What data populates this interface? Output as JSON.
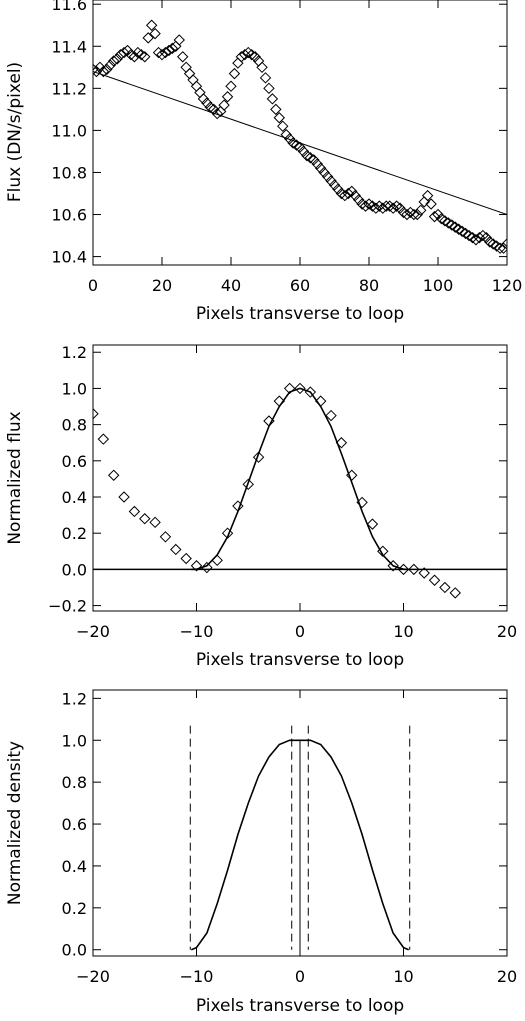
{
  "chart_data": [
    {
      "type": "scatter",
      "xlabel": "Pixels transverse to loop",
      "ylabel": "Flux (DN/s/pixel)",
      "xlim": [
        0,
        120
      ],
      "ylim": [
        10.36,
        11.62
      ],
      "xticks": [
        "0",
        "20",
        "40",
        "60",
        "80",
        "100",
        "120"
      ],
      "yticks": [
        "10.4",
        "10.6",
        "10.8",
        "11.0",
        "11.2",
        "11.4",
        "11.6"
      ],
      "grid": false,
      "series": [
        {
          "marker": "diamond",
          "x": [
            0,
            1,
            2,
            3,
            4,
            5,
            6,
            7,
            8,
            9,
            10,
            11,
            12,
            13,
            14,
            15,
            16,
            17,
            18,
            19,
            20,
            21,
            22,
            23,
            24,
            25,
            26,
            27,
            28,
            29,
            30,
            31,
            32,
            33,
            34,
            35,
            36,
            37,
            38,
            39,
            40,
            41,
            42,
            43,
            44,
            45,
            46,
            47,
            48,
            49,
            50,
            51,
            52,
            53,
            54,
            55,
            56,
            57,
            58,
            59,
            60,
            61,
            62,
            63,
            64,
            65,
            66,
            67,
            68,
            69,
            70,
            71,
            72,
            73,
            74,
            75,
            76,
            77,
            78,
            79,
            80,
            81,
            82,
            83,
            84,
            85,
            86,
            87,
            88,
            89,
            90,
            91,
            92,
            93,
            94,
            95,
            96,
            97,
            98,
            99,
            100,
            101,
            102,
            103,
            104,
            105,
            106,
            107,
            108,
            109,
            110,
            111,
            112,
            113,
            114,
            115,
            116,
            117,
            118,
            119,
            120
          ],
          "y": [
            11.29,
            11.28,
            11.3,
            11.28,
            11.29,
            11.31,
            11.33,
            11.34,
            11.36,
            11.37,
            11.38,
            11.36,
            11.35,
            11.37,
            11.36,
            11.35,
            11.44,
            11.5,
            11.46,
            11.37,
            11.36,
            11.37,
            11.38,
            11.39,
            11.4,
            11.43,
            11.35,
            11.3,
            11.27,
            11.24,
            11.21,
            11.18,
            11.15,
            11.13,
            11.11,
            11.1,
            11.08,
            11.09,
            11.12,
            11.16,
            11.21,
            11.27,
            11.32,
            11.35,
            11.36,
            11.37,
            11.36,
            11.35,
            11.33,
            11.3,
            11.25,
            11.2,
            11.15,
            11.1,
            11.06,
            11.02,
            10.98,
            10.96,
            10.94,
            10.93,
            10.92,
            10.9,
            10.88,
            10.87,
            10.86,
            10.84,
            10.82,
            10.8,
            10.78,
            10.76,
            10.74,
            10.72,
            10.7,
            10.69,
            10.7,
            10.71,
            10.69,
            10.67,
            10.65,
            10.64,
            10.65,
            10.64,
            10.63,
            10.64,
            10.63,
            10.64,
            10.64,
            10.63,
            10.64,
            10.63,
            10.61,
            10.6,
            10.61,
            10.6,
            10.6,
            10.62,
            10.66,
            10.69,
            10.65,
            10.59,
            10.6,
            10.58,
            10.57,
            10.56,
            10.55,
            10.54,
            10.53,
            10.52,
            10.51,
            10.5,
            10.49,
            10.48,
            10.49,
            10.5,
            10.49,
            10.47,
            10.46,
            10.45,
            10.44,
            10.44,
            10.46
          ]
        },
        {
          "marker": "line",
          "x": [
            0,
            120
          ],
          "y": [
            11.28,
            10.6
          ]
        }
      ]
    },
    {
      "type": "scatter",
      "xlabel": "Pixels transverse to loop",
      "ylabel": "Normalized flux",
      "xlim": [
        -20,
        20
      ],
      "ylim": [
        -0.23,
        1.24
      ],
      "xticks": [
        "−20",
        "−10",
        "0",
        "10",
        "20"
      ],
      "yticks": [
        "−0.2",
        "0.0",
        "0.2",
        "0.4",
        "0.6",
        "0.8",
        "1.0",
        "1.2"
      ],
      "grid": false,
      "series": [
        {
          "marker": "diamond",
          "x": [
            -20,
            -19,
            -18,
            -17,
            -16,
            -15,
            -14,
            -13,
            -12,
            -11,
            -10,
            -9,
            -8,
            -7,
            -6,
            -5,
            -4,
            -3,
            -2,
            -1,
            0,
            1,
            2,
            3,
            4,
            5,
            6,
            7,
            8,
            9,
            10,
            11,
            12,
            13,
            14,
            15
          ],
          "y": [
            0.86,
            0.72,
            0.52,
            0.4,
            0.32,
            0.28,
            0.26,
            0.18,
            0.11,
            0.06,
            0.02,
            0.01,
            0.05,
            0.2,
            0.35,
            0.47,
            0.62,
            0.82,
            0.93,
            1.0,
            1.0,
            0.98,
            0.93,
            0.85,
            0.7,
            0.52,
            0.37,
            0.25,
            0.1,
            0.02,
            0.0,
            0.0,
            -0.02,
            -0.06,
            -0.1,
            -0.13
          ]
        },
        {
          "marker": "curve",
          "x": [
            -10.5,
            -10,
            -9,
            -8,
            -7,
            -6,
            -5,
            -4,
            -3,
            -2,
            -1,
            0,
            1,
            2,
            3,
            4,
            5,
            6,
            7,
            8,
            9,
            10,
            10.5
          ],
          "y": [
            0.0,
            0.001,
            0.02,
            0.08,
            0.18,
            0.32,
            0.48,
            0.64,
            0.79,
            0.9,
            0.98,
            1.0,
            0.98,
            0.9,
            0.79,
            0.64,
            0.48,
            0.32,
            0.18,
            0.08,
            0.02,
            0.001,
            0.0
          ]
        }
      ]
    },
    {
      "type": "line",
      "xlabel": "Pixels transverse to loop",
      "ylabel": "Normalized density",
      "xlim": [
        -20,
        20
      ],
      "ylim": [
        -0.03,
        1.24
      ],
      "xticks": [
        "−20",
        "−10",
        "0",
        "10",
        "20"
      ],
      "yticks": [
        "0.0",
        "0.2",
        "0.4",
        "0.6",
        "0.8",
        "1.0",
        "1.2"
      ],
      "grid": false,
      "series": [
        {
          "marker": "curve",
          "x": [
            -10.5,
            -10,
            -9,
            -8,
            -7,
            -6,
            -5,
            -4,
            -3,
            -2,
            -1,
            -0.7,
            0.7,
            1,
            2,
            3,
            4,
            5,
            6,
            7,
            8,
            9,
            10,
            10.5
          ],
          "y": [
            0.0,
            0.01,
            0.08,
            0.22,
            0.38,
            0.55,
            0.7,
            0.83,
            0.92,
            0.98,
            1.0,
            1.0,
            1.0,
            1.0,
            0.98,
            0.92,
            0.83,
            0.7,
            0.55,
            0.38,
            0.22,
            0.08,
            0.01,
            0.0
          ]
        }
      ],
      "vlines": [
        {
          "x": -10.6,
          "style": "dashed"
        },
        {
          "x": -0.8,
          "style": "dashed"
        },
        {
          "x": 0.0,
          "style": "solid"
        },
        {
          "x": 0.8,
          "style": "dashed"
        },
        {
          "x": 10.6,
          "style": "dashed"
        }
      ]
    }
  ]
}
